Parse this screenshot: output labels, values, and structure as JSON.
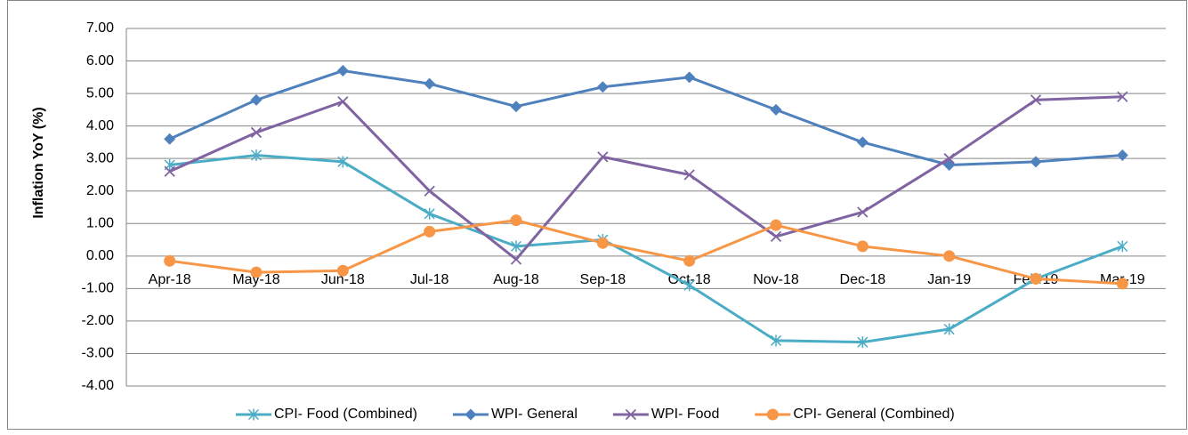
{
  "chart_data": {
    "type": "line",
    "y_label": "Inflation YoY (%)",
    "categories": [
      "Apr-18",
      "May-18",
      "Jun-18",
      "Jul-18",
      "Aug-18",
      "Sep-18",
      "Oct-18",
      "Nov-18",
      "Dec-18",
      "Jan-19",
      "Feb-19",
      "Mar-19"
    ],
    "series": [
      {
        "name": "CPI- Food (Combined)",
        "color": "#4bacc6",
        "marker": "star",
        "values": [
          2.8,
          3.1,
          2.9,
          1.3,
          0.3,
          0.5,
          -0.9,
          -2.6,
          -2.65,
          -2.25,
          -0.7,
          0.3
        ]
      },
      {
        "name": "WPI- General",
        "color": "#4f81bd",
        "marker": "diamond",
        "values": [
          3.6,
          4.8,
          5.7,
          5.3,
          4.6,
          5.2,
          5.5,
          4.5,
          3.5,
          2.8,
          2.9,
          3.1
        ]
      },
      {
        "name": "WPI- Food",
        "color": "#8064a2",
        "marker": "x",
        "values": [
          2.6,
          3.8,
          4.75,
          2.0,
          -0.1,
          3.05,
          2.5,
          0.6,
          1.35,
          3.0,
          4.8,
          4.9
        ]
      },
      {
        "name": "CPI- General (Combined)",
        "color": "#f79646",
        "marker": "circle",
        "values": [
          -0.15,
          -0.5,
          -0.45,
          0.75,
          1.1,
          0.4,
          -0.15,
          0.95,
          0.3,
          0.0,
          -0.7,
          -0.85
        ]
      }
    ],
    "ylim": [
      -4,
      7
    ],
    "yticks": [
      {
        "value": -4,
        "label": "-4.00"
      },
      {
        "value": -3,
        "label": "-3.00"
      },
      {
        "value": -2,
        "label": "-2.00"
      },
      {
        "value": -1,
        "label": "-1.00"
      },
      {
        "value": 0,
        "label": "0.00"
      },
      {
        "value": 1,
        "label": "1.00"
      },
      {
        "value": 2,
        "label": "2.00"
      },
      {
        "value": 3,
        "label": "3.00"
      },
      {
        "value": 4,
        "label": "4.00"
      },
      {
        "value": 5,
        "label": "5.00"
      },
      {
        "value": 6,
        "label": "6.00"
      },
      {
        "value": 7,
        "label": "7.00"
      }
    ],
    "grid": true
  }
}
